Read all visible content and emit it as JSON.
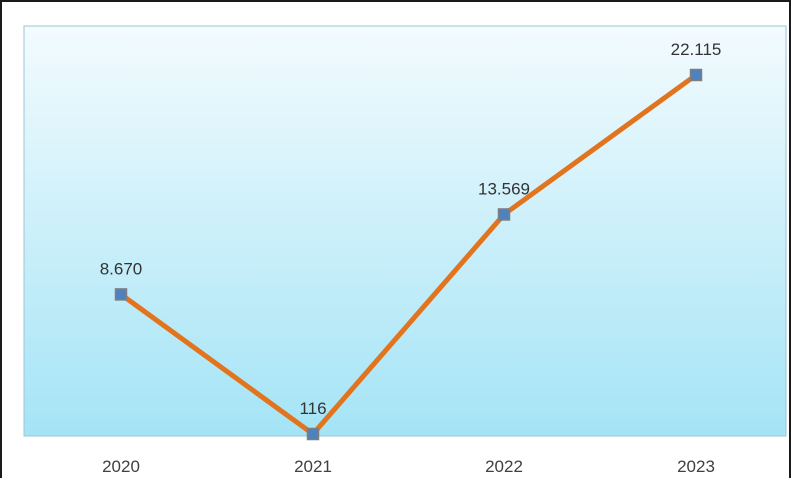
{
  "chart_data": {
    "type": "line",
    "categories": [
      "2020",
      "2021",
      "2022",
      "2023"
    ],
    "series": [
      {
        "values": [
          8670,
          116,
          13569,
          22115
        ],
        "labels": [
          "8.670",
          "116",
          "13.569",
          "22.115"
        ]
      }
    ],
    "title": "",
    "xlabel": "",
    "ylabel": "",
    "ylim": [
      116,
      22115
    ],
    "grid": false,
    "legend": "none",
    "colors": {
      "line": "#e3741e",
      "marker_fill": "#4f81bd",
      "marker_stroke": "#7f7f7f",
      "plot_bg_top": "#f3fbfe",
      "plot_bg_bottom": "#a4e4f6",
      "plot_border": "#9fc4d6"
    }
  }
}
